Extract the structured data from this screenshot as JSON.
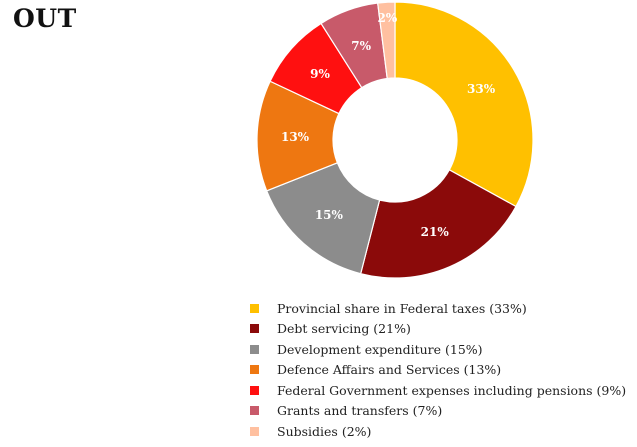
{
  "title": "OUT",
  "chart_data": {
    "type": "pie",
    "donut": true,
    "title": "OUT",
    "legend_position": "bottom",
    "slices": [
      {
        "label": "33%",
        "value": 33,
        "color": "#FFC000",
        "legend": "Provincial share in Federal taxes (33%)"
      },
      {
        "label": "21%",
        "value": 21,
        "color": "#8B0A0A",
        "legend": "Debt servicing (21%)"
      },
      {
        "label": "15%",
        "value": 15,
        "color": "#8C8C8C",
        "legend": "Development expenditure (15%)"
      },
      {
        "label": "13%",
        "value": 13,
        "color": "#EE7711",
        "legend": "Defence Affairs and Services (13%)"
      },
      {
        "label": "9%",
        "value": 9,
        "color": "#FF1010",
        "legend": "Federal Government expenses including pensions (9%)"
      },
      {
        "label": "7%",
        "value": 7,
        "color": "#C85A6A",
        "legend": "Grants and transfers (7%)"
      },
      {
        "label": "2%",
        "value": 2,
        "color": "#FFC0A0",
        "legend": "Subsidies (2%)"
      }
    ]
  }
}
